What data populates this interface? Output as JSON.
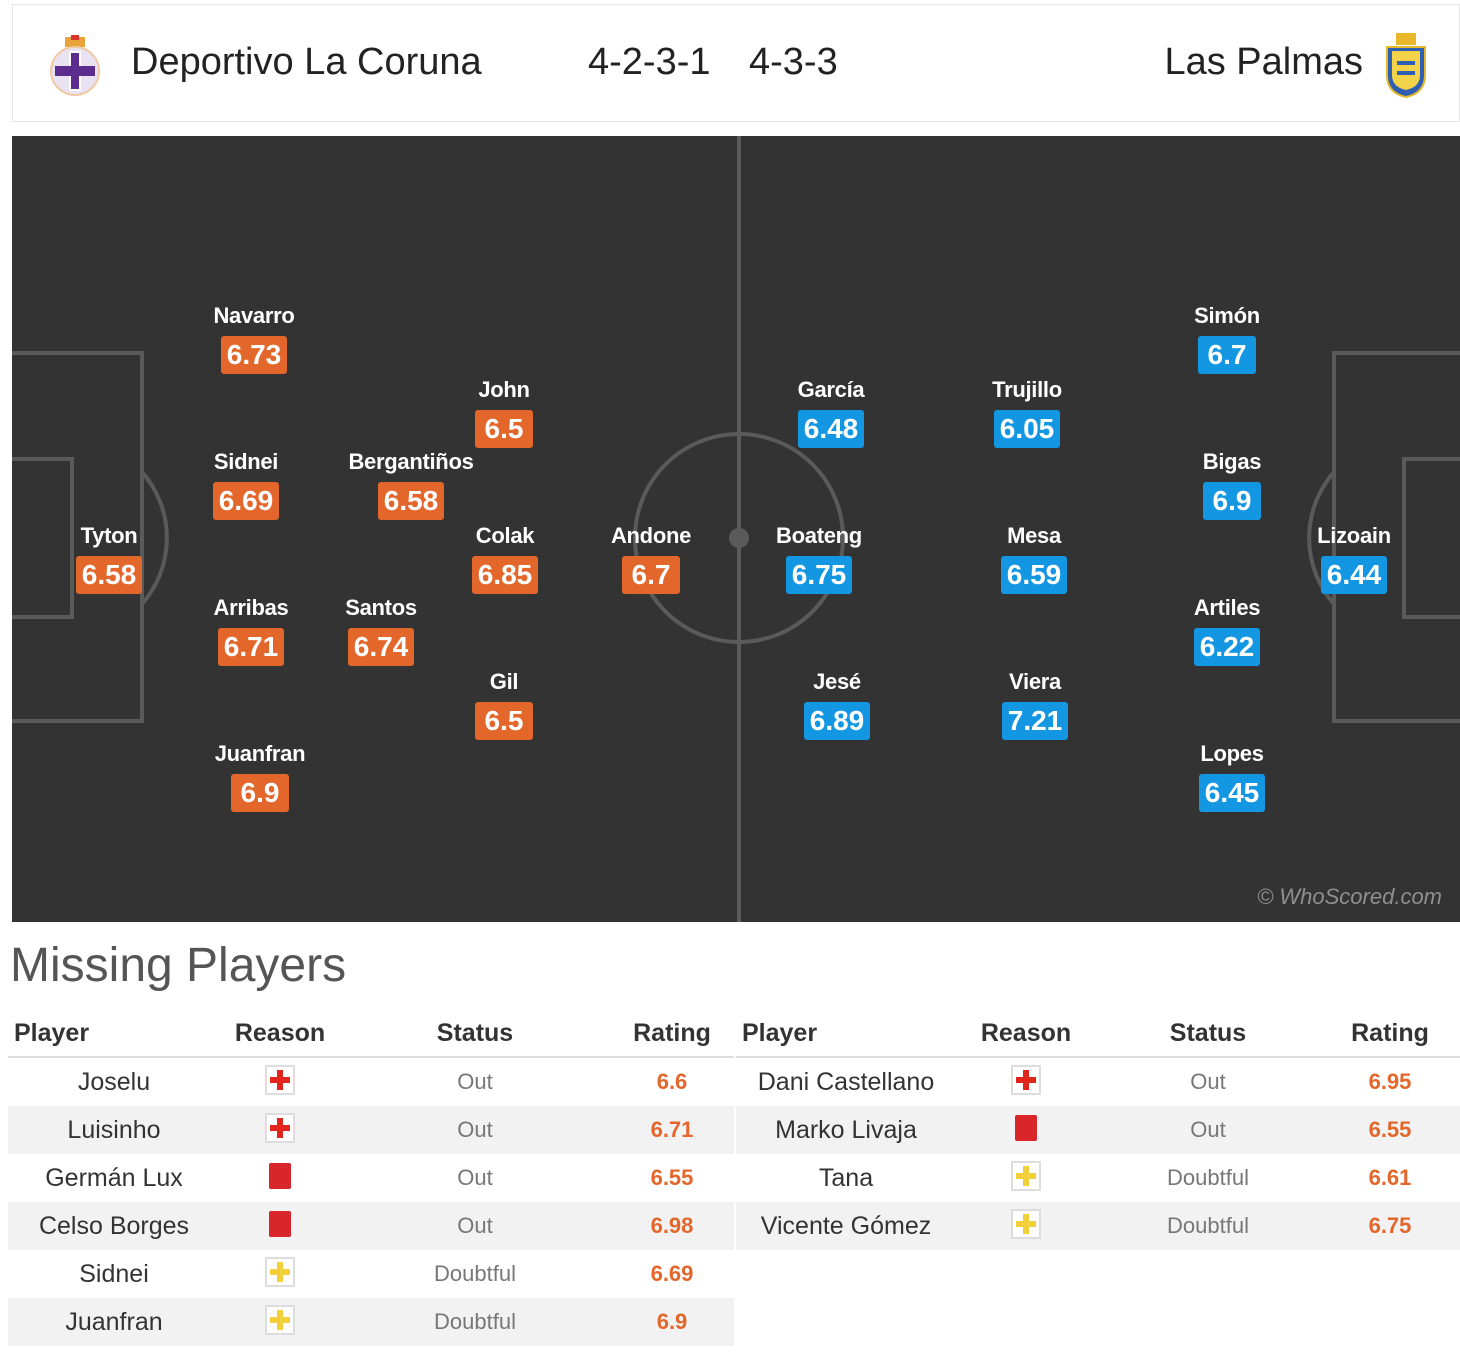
{
  "match": {
    "home": {
      "name": "Deportivo La Coruna",
      "formation": "4-2-3-1",
      "crest": "deportivo-crest-icon"
    },
    "away": {
      "name": "Las Palmas",
      "formation": "4-3-3",
      "crest": "las-palmas-crest-icon"
    }
  },
  "colors": {
    "pitch": "#333333",
    "home_rating": "#e3672b",
    "away_rating": "#1497e3",
    "pitch_lines": "#5a5a5a"
  },
  "lineup": {
    "home": [
      {
        "name": "Tyton",
        "rating": "6.58"
      },
      {
        "name": "Navarro",
        "rating": "6.73"
      },
      {
        "name": "Sidnei",
        "rating": "6.69"
      },
      {
        "name": "Arribas",
        "rating": "6.71"
      },
      {
        "name": "Juanfran",
        "rating": "6.9"
      },
      {
        "name": "Bergantiños",
        "rating": "6.58"
      },
      {
        "name": "Santos",
        "rating": "6.74"
      },
      {
        "name": "John",
        "rating": "6.5"
      },
      {
        "name": "Colak",
        "rating": "6.85"
      },
      {
        "name": "Gil",
        "rating": "6.5"
      },
      {
        "name": "Andone",
        "rating": "6.7"
      }
    ],
    "away": [
      {
        "name": "García",
        "rating": "6.48"
      },
      {
        "name": "Boateng",
        "rating": "6.75"
      },
      {
        "name": "Jesé",
        "rating": "6.89"
      },
      {
        "name": "Trujillo",
        "rating": "6.05"
      },
      {
        "name": "Mesa",
        "rating": "6.59"
      },
      {
        "name": "Viera",
        "rating": "7.21"
      },
      {
        "name": "Simón",
        "rating": "6.7"
      },
      {
        "name": "Bigas",
        "rating": "6.9"
      },
      {
        "name": "Artiles",
        "rating": "6.22"
      },
      {
        "name": "Lopes",
        "rating": "6.45"
      },
      {
        "name": "Lizoain",
        "rating": "6.44"
      }
    ]
  },
  "watermark": "© WhoScored.com",
  "missing": {
    "title": "Missing Players",
    "columns": [
      "Player",
      "Reason",
      "Status",
      "Rating"
    ],
    "home": [
      {
        "player": "Joselu",
        "reason": "injury-icon",
        "status": "Out",
        "rating": "6.6"
      },
      {
        "player": "Luisinho",
        "reason": "injury-icon",
        "status": "Out",
        "rating": "6.71"
      },
      {
        "player": "Germán Lux",
        "reason": "red-card-icon",
        "status": "Out",
        "rating": "6.55"
      },
      {
        "player": "Celso Borges",
        "reason": "red-card-icon",
        "status": "Out",
        "rating": "6.98"
      },
      {
        "player": "Sidnei",
        "reason": "doubtful-icon",
        "status": "Doubtful",
        "rating": "6.69"
      },
      {
        "player": "Juanfran",
        "reason": "doubtful-icon",
        "status": "Doubtful",
        "rating": "6.9"
      }
    ],
    "away": [
      {
        "player": "Dani Castellano",
        "reason": "injury-icon",
        "status": "Out",
        "rating": "6.95"
      },
      {
        "player": "Marko Livaja",
        "reason": "red-card-icon",
        "status": "Out",
        "rating": "6.55"
      },
      {
        "player": "Tana",
        "reason": "doubtful-icon",
        "status": "Doubtful",
        "rating": "6.61"
      },
      {
        "player": "Vicente Gómez",
        "reason": "doubtful-icon",
        "status": "Doubtful",
        "rating": "6.75"
      }
    ]
  }
}
